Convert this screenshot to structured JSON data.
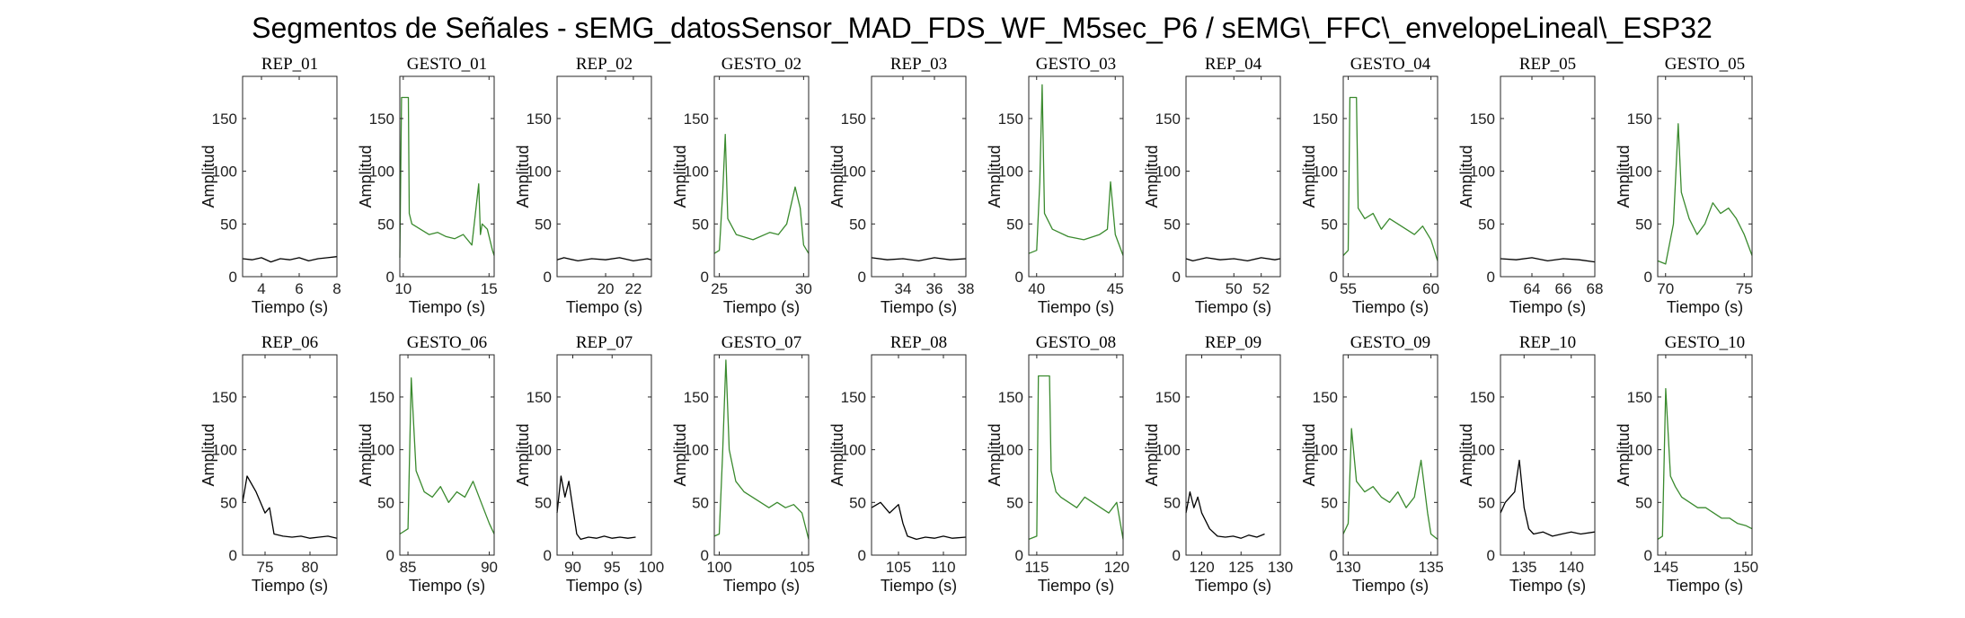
{
  "figure": {
    "title": "Segmentos de Señales - sEMG_datosSensor_MAD_FDS_WF_M5sec_P6 / sEMG\\_FFC\\_envelopeLineal\\_ESP32"
  },
  "colors": {
    "rep": "#000000",
    "gesto": "#3a8a2e",
    "axes": "#262626"
  },
  "chart_data": [
    {
      "type": "line",
      "title": "REP_01",
      "kind": "rep",
      "xlabel": "Tiempo (s)",
      "ylabel": "Amplitud",
      "xlim": [
        3,
        8
      ],
      "ylim": [
        0,
        190
      ],
      "xticks": [
        4,
        6,
        8
      ],
      "yticks": [
        0,
        50,
        100,
        150
      ],
      "x": [
        3,
        3.5,
        4,
        4.5,
        5,
        5.5,
        6,
        6.5,
        7,
        7.5,
        8
      ],
      "y": [
        17,
        16,
        18,
        14,
        17,
        16,
        18,
        15,
        17,
        18,
        19
      ]
    },
    {
      "type": "line",
      "title": "GESTO_01",
      "kind": "gesto",
      "xlabel": "Tiempo (s)",
      "ylabel": "Amplitud",
      "xlim": [
        9.8,
        15.3
      ],
      "ylim": [
        0,
        190
      ],
      "xticks": [
        10,
        15
      ],
      "yticks": [
        0,
        50,
        100,
        150
      ],
      "x": [
        9.8,
        9.9,
        10,
        10.3,
        10.35,
        10.5,
        11,
        11.5,
        12,
        12.5,
        13,
        13.5,
        14,
        14.4,
        14.5,
        14.6,
        14.9,
        15.2,
        15.3
      ],
      "y": [
        18,
        170,
        170,
        170,
        60,
        50,
        45,
        40,
        42,
        38,
        36,
        40,
        30,
        88,
        40,
        50,
        45,
        25,
        20
      ]
    },
    {
      "type": "line",
      "title": "REP_02",
      "kind": "rep",
      "xlabel": "Tiempo (s)",
      "ylabel": "Amplitud",
      "xlim": [
        16.5,
        23.3
      ],
      "ylim": [
        0,
        190
      ],
      "xticks": [
        20,
        22
      ],
      "yticks": [
        0,
        50,
        100,
        150
      ],
      "x": [
        16.5,
        17,
        18,
        19,
        20,
        21,
        22,
        23,
        23.3
      ],
      "y": [
        16,
        18,
        15,
        17,
        16,
        18,
        15,
        17,
        16
      ]
    },
    {
      "type": "line",
      "title": "GESTO_02",
      "kind": "gesto",
      "xlabel": "Tiempo (s)",
      "ylabel": "Amplitud",
      "xlim": [
        24.7,
        30.3
      ],
      "ylim": [
        0,
        190
      ],
      "xticks": [
        25,
        30
      ],
      "yticks": [
        0,
        50,
        100,
        150
      ],
      "x": [
        24.7,
        25,
        25.2,
        25.35,
        25.5,
        26,
        27,
        28,
        28.5,
        29,
        29.5,
        29.8,
        30,
        30.3
      ],
      "y": [
        22,
        25,
        80,
        135,
        55,
        40,
        35,
        42,
        40,
        50,
        85,
        65,
        30,
        22
      ]
    },
    {
      "type": "line",
      "title": "REP_03",
      "kind": "rep",
      "xlabel": "Tiempo (s)",
      "ylabel": "Amplitud",
      "xlim": [
        32,
        38
      ],
      "ylim": [
        0,
        190
      ],
      "xticks": [
        34,
        36,
        38
      ],
      "yticks": [
        0,
        50,
        100,
        150
      ],
      "x": [
        32,
        33,
        34,
        35,
        36,
        37,
        38
      ],
      "y": [
        18,
        16,
        17,
        15,
        18,
        16,
        17
      ]
    },
    {
      "type": "line",
      "title": "GESTO_03",
      "kind": "gesto",
      "xlabel": "Tiempo (s)",
      "ylabel": "Amplitud",
      "xlim": [
        39.5,
        45.5
      ],
      "ylim": [
        0,
        190
      ],
      "xticks": [
        40,
        45
      ],
      "yticks": [
        0,
        50,
        100,
        150
      ],
      "x": [
        39.5,
        40,
        40.2,
        40.35,
        40.5,
        41,
        42,
        43,
        44,
        44.5,
        44.7,
        45,
        45.5
      ],
      "y": [
        22,
        25,
        90,
        182,
        60,
        45,
        38,
        35,
        40,
        45,
        90,
        40,
        20
      ]
    },
    {
      "type": "line",
      "title": "REP_04",
      "kind": "rep",
      "xlabel": "Tiempo (s)",
      "ylabel": "Amplitud",
      "xlim": [
        46.5,
        53.4
      ],
      "ylim": [
        0,
        190
      ],
      "xticks": [
        50,
        52
      ],
      "yticks": [
        0,
        50,
        100,
        150
      ],
      "x": [
        46.5,
        47,
        48,
        49,
        50,
        51,
        52,
        53,
        53.4
      ],
      "y": [
        17,
        15,
        18,
        16,
        17,
        15,
        18,
        16,
        17
      ]
    },
    {
      "type": "line",
      "title": "GESTO_04",
      "kind": "gesto",
      "xlabel": "Tiempo (s)",
      "ylabel": "Amplitud",
      "xlim": [
        54.7,
        60.4
      ],
      "ylim": [
        0,
        190
      ],
      "xticks": [
        55,
        60
      ],
      "yticks": [
        0,
        50,
        100,
        150
      ],
      "x": [
        54.7,
        55,
        55.1,
        55.5,
        55.6,
        56,
        56.5,
        57,
        57.5,
        58,
        58.5,
        59,
        59.5,
        60,
        60.4
      ],
      "y": [
        20,
        25,
        170,
        170,
        65,
        55,
        60,
        45,
        55,
        50,
        45,
        40,
        48,
        35,
        15
      ]
    },
    {
      "type": "line",
      "title": "REP_05",
      "kind": "rep",
      "xlabel": "Tiempo (s)",
      "ylabel": "Amplitud",
      "xlim": [
        62,
        68
      ],
      "ylim": [
        0,
        190
      ],
      "xticks": [
        64,
        66,
        68
      ],
      "yticks": [
        0,
        50,
        100,
        150
      ],
      "x": [
        62,
        63,
        64,
        65,
        66,
        67,
        68
      ],
      "y": [
        17,
        16,
        18,
        15,
        17,
        16,
        14
      ]
    },
    {
      "type": "line",
      "title": "GESTO_05",
      "kind": "gesto",
      "xlabel": "Tiempo (s)",
      "ylabel": "Amplitud",
      "xlim": [
        69.5,
        75.5
      ],
      "ylim": [
        0,
        190
      ],
      "xticks": [
        70,
        75
      ],
      "yticks": [
        0,
        50,
        100,
        150
      ],
      "x": [
        69.5,
        70,
        70.5,
        70.8,
        71,
        71.5,
        72,
        72.5,
        73,
        73.5,
        74,
        74.5,
        75,
        75.5
      ],
      "y": [
        15,
        12,
        50,
        145,
        80,
        55,
        40,
        50,
        70,
        60,
        65,
        55,
        40,
        20
      ]
    },
    {
      "type": "line",
      "title": "REP_06",
      "kind": "rep",
      "xlabel": "Tiempo (s)",
      "ylabel": "Amplitud",
      "xlim": [
        72.5,
        83
      ],
      "ylim": [
        0,
        190
      ],
      "xticks": [
        75,
        80
      ],
      "yticks": [
        0,
        50,
        100,
        150
      ],
      "x": [
        72.5,
        73,
        74,
        75,
        75.5,
        76,
        77,
        78,
        79,
        80,
        81,
        82,
        83
      ],
      "y": [
        50,
        75,
        60,
        40,
        45,
        20,
        18,
        17,
        18,
        16,
        17,
        18,
        16
      ]
    },
    {
      "type": "line",
      "title": "GESTO_06",
      "kind": "gesto",
      "xlabel": "Tiempo (s)",
      "ylabel": "Amplitud",
      "xlim": [
        84.5,
        90.3
      ],
      "ylim": [
        0,
        190
      ],
      "xticks": [
        85,
        90
      ],
      "yticks": [
        0,
        50,
        100,
        150
      ],
      "x": [
        84.5,
        85,
        85.2,
        85.5,
        86,
        86.5,
        87,
        87.5,
        88,
        88.5,
        89,
        89.5,
        90,
        90.3
      ],
      "y": [
        20,
        25,
        168,
        80,
        60,
        55,
        65,
        50,
        60,
        55,
        70,
        50,
        30,
        20
      ]
    },
    {
      "type": "line",
      "title": "REP_07",
      "kind": "rep",
      "xlabel": "Tiempo (s)",
      "ylabel": "Amplitud",
      "xlim": [
        88,
        100
      ],
      "ylim": [
        0,
        190
      ],
      "xticks": [
        90,
        95,
        100
      ],
      "yticks": [
        0,
        50,
        100,
        150
      ],
      "x": [
        88,
        88.5,
        89,
        89.5,
        90,
        90.5,
        91,
        92,
        93,
        94,
        95,
        96,
        97,
        98
      ],
      "y": [
        40,
        75,
        55,
        70,
        45,
        20,
        15,
        17,
        16,
        18,
        16,
        17,
        16,
        17
      ]
    },
    {
      "type": "line",
      "title": "GESTO_07",
      "kind": "gesto",
      "xlabel": "Tiempo (s)",
      "ylabel": "Amplitud",
      "xlim": [
        99.7,
        105.4
      ],
      "ylim": [
        0,
        190
      ],
      "xticks": [
        100,
        105
      ],
      "yticks": [
        0,
        50,
        100,
        150
      ],
      "x": [
        99.7,
        100,
        100.2,
        100.4,
        100.6,
        101,
        101.5,
        102,
        102.5,
        103,
        103.5,
        104,
        104.5,
        105,
        105.4
      ],
      "y": [
        18,
        20,
        95,
        185,
        100,
        70,
        60,
        55,
        50,
        45,
        50,
        45,
        48,
        40,
        15
      ]
    },
    {
      "type": "line",
      "title": "REP_08",
      "kind": "rep",
      "xlabel": "Tiempo (s)",
      "ylabel": "Amplitud",
      "xlim": [
        102,
        112.5
      ],
      "ylim": [
        0,
        190
      ],
      "xticks": [
        105,
        110
      ],
      "yticks": [
        0,
        50,
        100,
        150
      ],
      "x": [
        102,
        103,
        104,
        105,
        105.5,
        106,
        107,
        108,
        109,
        110,
        111,
        112.5
      ],
      "y": [
        45,
        50,
        40,
        48,
        30,
        18,
        15,
        17,
        16,
        18,
        16,
        17
      ]
    },
    {
      "type": "line",
      "title": "GESTO_08",
      "kind": "gesto",
      "xlabel": "Tiempo (s)",
      "ylabel": "Amplitud",
      "xlim": [
        114.5,
        120.4
      ],
      "ylim": [
        0,
        190
      ],
      "xticks": [
        115,
        120
      ],
      "yticks": [
        0,
        50,
        100,
        150
      ],
      "x": [
        114.5,
        115,
        115.1,
        115.8,
        115.9,
        116.2,
        116.5,
        117,
        117.5,
        118,
        118.5,
        119,
        119.5,
        120,
        120.4
      ],
      "y": [
        15,
        18,
        170,
        170,
        80,
        60,
        55,
        50,
        45,
        55,
        50,
        45,
        40,
        50,
        15
      ]
    },
    {
      "type": "line",
      "title": "REP_09",
      "kind": "rep",
      "xlabel": "Tiempo (s)",
      "ylabel": "Amplitud",
      "xlim": [
        118,
        130
      ],
      "ylim": [
        0,
        190
      ],
      "xticks": [
        120,
        125,
        130
      ],
      "yticks": [
        0,
        50,
        100,
        150
      ],
      "x": [
        118,
        118.5,
        119,
        119.5,
        120,
        121,
        122,
        123,
        124,
        125,
        126,
        127,
        128
      ],
      "y": [
        40,
        60,
        45,
        55,
        40,
        25,
        18,
        17,
        18,
        16,
        19,
        17,
        20
      ]
    },
    {
      "type": "line",
      "title": "GESTO_09",
      "kind": "gesto",
      "xlabel": "Tiempo (s)",
      "ylabel": "Amplitud",
      "xlim": [
        129.7,
        135.4
      ],
      "ylim": [
        0,
        190
      ],
      "xticks": [
        130,
        135
      ],
      "yticks": [
        0,
        50,
        100,
        150
      ],
      "x": [
        129.7,
        130,
        130.2,
        130.5,
        131,
        131.5,
        132,
        132.5,
        133,
        133.5,
        134,
        134.4,
        134.8,
        135,
        135.4
      ],
      "y": [
        20,
        30,
        120,
        70,
        60,
        65,
        55,
        50,
        60,
        45,
        55,
        90,
        40,
        20,
        15
      ]
    },
    {
      "type": "line",
      "title": "REP_10",
      "kind": "rep",
      "xlabel": "Tiempo (s)",
      "ylabel": "Amplitud",
      "xlim": [
        132.5,
        142.5
      ],
      "ylim": [
        0,
        190
      ],
      "xticks": [
        135,
        140
      ],
      "yticks": [
        0,
        50,
        100,
        150
      ],
      "x": [
        132.5,
        133,
        134,
        134.5,
        135,
        135.5,
        136,
        137,
        138,
        139,
        140,
        141,
        142.5
      ],
      "y": [
        40,
        50,
        60,
        90,
        45,
        25,
        20,
        22,
        18,
        20,
        22,
        20,
        22
      ]
    },
    {
      "type": "line",
      "title": "GESTO_10",
      "kind": "gesto",
      "xlabel": "Tiempo (s)",
      "ylabel": "Amplitud",
      "xlim": [
        144.5,
        150.4
      ],
      "ylim": [
        0,
        190
      ],
      "xticks": [
        145,
        150
      ],
      "yticks": [
        0,
        50,
        100,
        150
      ],
      "x": [
        144.5,
        144.8,
        145,
        145.3,
        145.6,
        146,
        146.5,
        147,
        147.5,
        148,
        148.5,
        149,
        149.5,
        150,
        150.4
      ],
      "y": [
        15,
        18,
        158,
        75,
        65,
        55,
        50,
        45,
        45,
        40,
        35,
        35,
        30,
        28,
        25
      ]
    }
  ]
}
